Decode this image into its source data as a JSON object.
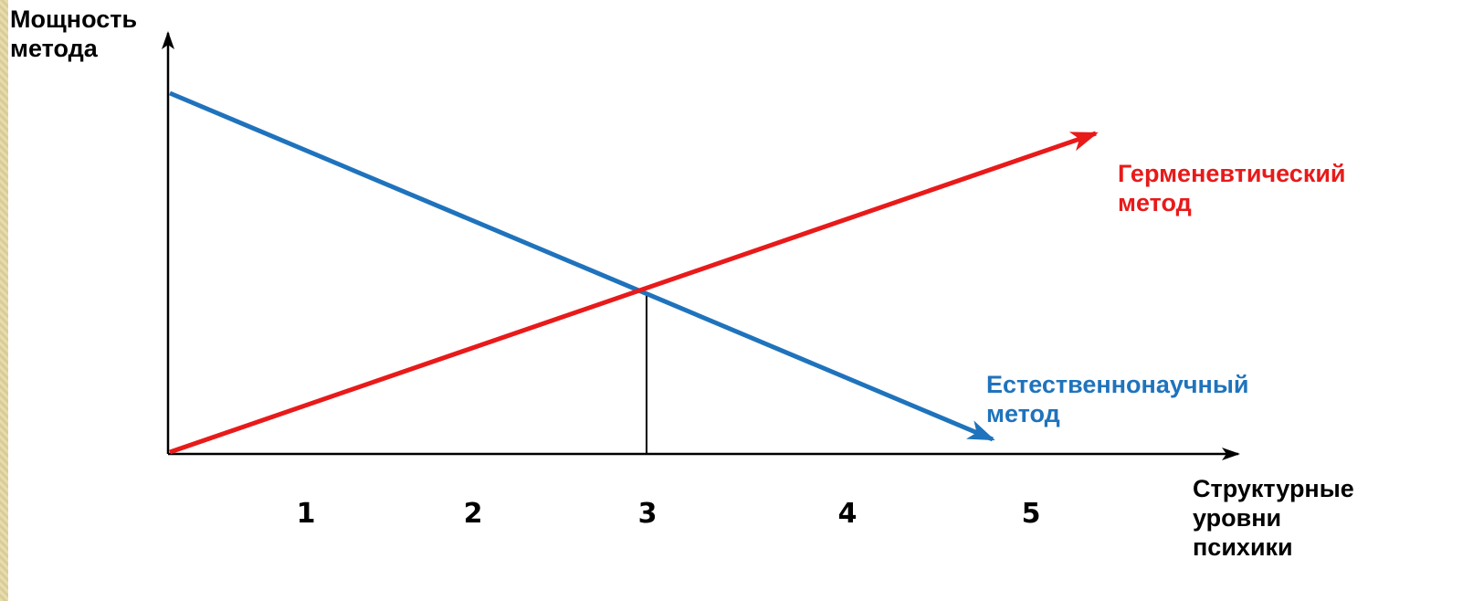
{
  "y_axis_label": [
    "Мощность",
    "метода"
  ],
  "x_axis_label": [
    "Структурные",
    "уровни",
    "психики"
  ],
  "x_ticks": [
    "1",
    "2",
    "3",
    "4",
    "5"
  ],
  "series": [
    {
      "name": [
        "Герменевтический",
        "метод"
      ],
      "color": "#e81a1a",
      "trend": "increasing"
    },
    {
      "name": [
        "Естественнонаучный",
        "метод"
      ],
      "color": "#1f73bc",
      "trend": "decreasing"
    }
  ],
  "intersection_at_tick": "3",
  "colors": {
    "axis": "#000000",
    "hermeneutic": "#e81a1a",
    "natural_science": "#1f73bc",
    "left_strip": "#e7dcae"
  }
}
